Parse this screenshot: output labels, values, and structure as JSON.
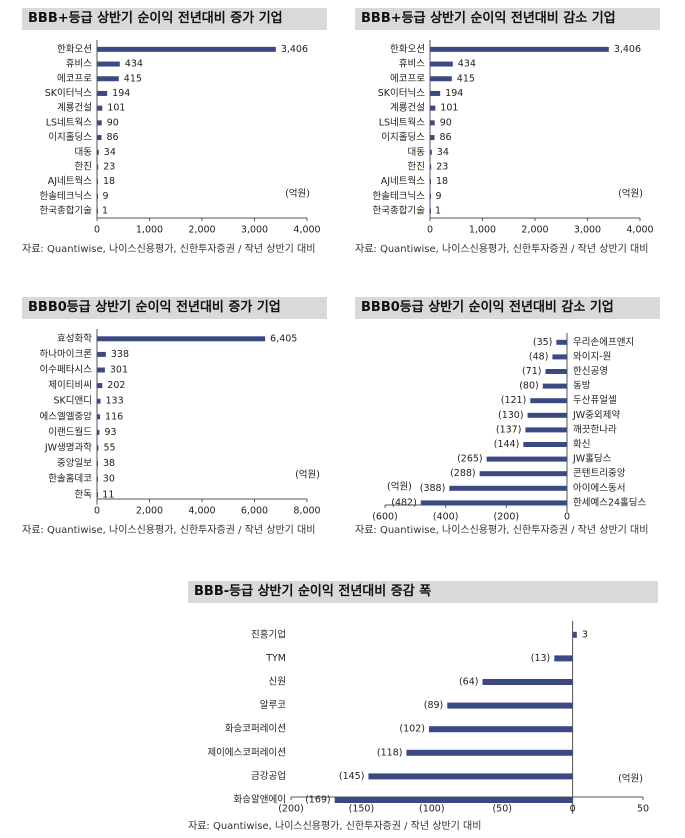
{
  "panels": [
    {
      "title": "BBB+등급 상반기 순이익 전년대비 증가 기업",
      "source": "자료: Quantiwise, 나이스신용평가, 신한투자증권 / 작년 상반기 대비",
      "unit": "(억원)"
    },
    {
      "title": "BBB+등급 상반기 순이익 전년대비 감소 기업",
      "source": "자료: Quantiwise, 나이스신용평가, 신한투자증권 / 작년 상반기 대비",
      "unit": "(억원)"
    },
    {
      "title": "BBB0등급 상반기 순이익 전년대비 증가 기업",
      "source": "자료: Quantiwise, 나이스신용평가, 신한투자증권 / 작년 상반기 대비",
      "unit": "(억원)"
    },
    {
      "title": "BBB0등급 상반기 순이익 전년대비 감소 기업",
      "source": "자료: Quantiwise, 나이스신용평가, 신한투자증권 / 작년 상반기 대비",
      "unit": "(억원)"
    },
    {
      "title": "BBB-등급 상반기 순이익 전년대비 증감 폭",
      "source": "자료: Quantiwise, 나이스신용평가, 신한투자증권 / 작년 상반기 대비",
      "unit": "(억원)"
    }
  ],
  "chart_data": [
    {
      "type": "bar",
      "orientation": "horizontal",
      "title": "BBB+등급 상반기 순이익 전년대비 증가 기업",
      "categories": [
        "한화오션",
        "휴비스",
        "에코프로",
        "SK이터닉스",
        "계룡건설",
        "LS네트웍스",
        "이지홀딩스",
        "대동",
        "한진",
        "AJ네트웍스",
        "한솔테크닉스",
        "한국종합기술"
      ],
      "values": [
        3406,
        434,
        415,
        194,
        101,
        90,
        86,
        34,
        23,
        18,
        9,
        1
      ],
      "value_labels": [
        "3,406",
        "434",
        "415",
        "194",
        "101",
        "90",
        "86",
        "34",
        "23",
        "18",
        "9",
        "1"
      ],
      "xlim": [
        0,
        4000
      ],
      "xticks": [
        0,
        1000,
        2000,
        3000,
        4000
      ],
      "xtick_labels": [
        "0",
        "1,000",
        "2,000",
        "3,000",
        "4,000"
      ],
      "color": "#3c4a84"
    },
    {
      "type": "bar",
      "orientation": "horizontal",
      "title": "BBB+등급 상반기 순이익 전년대비 감소 기업",
      "categories": [
        "한화오션",
        "휴비스",
        "에코프로",
        "SK이터닉스",
        "계룡건설",
        "LS네트웍스",
        "이지홀딩스",
        "대동",
        "한진",
        "AJ네트웍스",
        "한솔테크닉스",
        "한국종합기술"
      ],
      "values": [
        3406,
        434,
        415,
        194,
        101,
        90,
        86,
        34,
        23,
        18,
        9,
        1
      ],
      "value_labels": [
        "3,406",
        "434",
        "415",
        "194",
        "101",
        "90",
        "86",
        "34",
        "23",
        "18",
        "9",
        "1"
      ],
      "xlim": [
        0,
        4000
      ],
      "xticks": [
        0,
        1000,
        2000,
        3000,
        4000
      ],
      "xtick_labels": [
        "0",
        "1,000",
        "2,000",
        "3,000",
        "4,000"
      ],
      "color": "#3c4a84"
    },
    {
      "type": "bar",
      "orientation": "horizontal",
      "title": "BBB0등급 상반기 순이익 전년대비 증가 기업",
      "categories": [
        "효성화학",
        "하나마이크론",
        "이수페타시스",
        "제이티비씨",
        "SK디앤디",
        "에스엘엘중앙",
        "이랜드월드",
        "JW생명과학",
        "중앙일보",
        "한솔홈데코",
        "한독"
      ],
      "values": [
        6405,
        338,
        301,
        202,
        133,
        116,
        93,
        55,
        38,
        30,
        11
      ],
      "value_labels": [
        "6,405",
        "338",
        "301",
        "202",
        "133",
        "116",
        "93",
        "55",
        "38",
        "30",
        "11"
      ],
      "xlim": [
        0,
        8000
      ],
      "xticks": [
        0,
        2000,
        4000,
        6000,
        8000
      ],
      "xtick_labels": [
        "0",
        "2,000",
        "4,000",
        "6,000",
        "8,000"
      ],
      "color": "#3c4a84"
    },
    {
      "type": "bar",
      "orientation": "horizontal",
      "title": "BBB0등급 상반기 순이익 전년대비 감소 기업",
      "categories": [
        "우리손에프앤지",
        "와이지-원",
        "한신공영",
        "동방",
        "두산퓨얼셀",
        "JW중외제약",
        "깨끗한나라",
        "화신",
        "JW홀딩스",
        "콘텐트리중앙",
        "아이에스동서",
        "한세예스24홀딩스"
      ],
      "values": [
        -35,
        -48,
        -71,
        -80,
        -121,
        -130,
        -137,
        -144,
        -265,
        -288,
        -388,
        -482
      ],
      "value_labels": [
        "(35)",
        "(48)",
        "(71)",
        "(80)",
        "(121)",
        "(130)",
        "(137)",
        "(144)",
        "(265)",
        "(288)",
        "(388)",
        "(482)"
      ],
      "xlim": [
        -600,
        0
      ],
      "xticks": [
        -600,
        -400,
        -200,
        0
      ],
      "xtick_labels": [
        "(600)",
        "(400)",
        "(200)",
        "0"
      ],
      "color": "#3c4a84"
    },
    {
      "type": "bar",
      "orientation": "horizontal",
      "title": "BBB-등급 상반기 순이익 전년대비 증감 폭",
      "categories": [
        "진흥기업",
        "TYM",
        "신원",
        "알루코",
        "화승코퍼레이션",
        "제이에스코퍼레이션",
        "금강공업",
        "화승알앤에이"
      ],
      "values": [
        3,
        -13,
        -64,
        -89,
        -102,
        -118,
        -145,
        -169
      ],
      "value_labels": [
        "3",
        "(13)",
        "(64)",
        "(89)",
        "(102)",
        "(118)",
        "(145)",
        "(169)"
      ],
      "xlim": [
        -200,
        50
      ],
      "xticks": [
        -200,
        -150,
        -100,
        -50,
        0,
        50
      ],
      "xtick_labels": [
        "(200)",
        "(150)",
        "(100)",
        "(50)",
        "0",
        "50"
      ],
      "color": "#3c4a84"
    }
  ]
}
